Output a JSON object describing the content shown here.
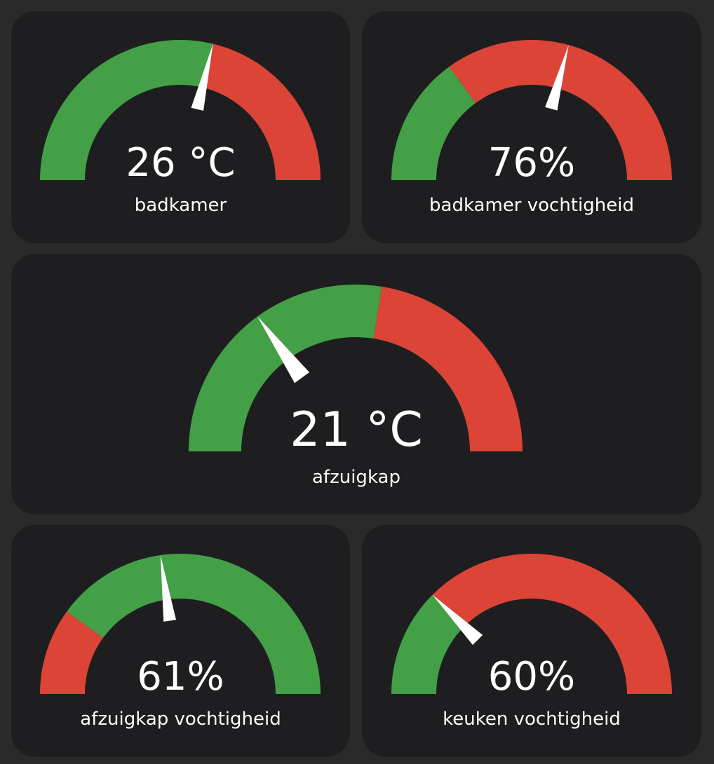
{
  "colors": {
    "background": "#2a2a2b",
    "card": "#1e1e20",
    "green": "#43a047",
    "red": "#db4437",
    "needle": "#ffffff"
  },
  "gauges": [
    {
      "id": "badkamer",
      "value_text": "26 °C",
      "label": "badkamer",
      "needle_fraction": 0.575,
      "segments": [
        {
          "color": "green",
          "from": 0.0,
          "to": 0.575
        },
        {
          "color": "red",
          "from": 0.575,
          "to": 1.0
        }
      ]
    },
    {
      "id": "badkamer-vochtigheid",
      "value_text": "76%",
      "label": "badkamer vochtigheid",
      "needle_fraction": 0.585,
      "segments": [
        {
          "color": "green",
          "from": 0.0,
          "to": 0.3
        },
        {
          "color": "red",
          "from": 0.3,
          "to": 1.0
        }
      ]
    },
    {
      "id": "afzuigkap",
      "value_text": "21 °C",
      "label": "afzuigkap",
      "needle_fraction": 0.3,
      "segments": [
        {
          "color": "green",
          "from": 0.0,
          "to": 0.55
        },
        {
          "color": "red",
          "from": 0.55,
          "to": 1.0
        }
      ]
    },
    {
      "id": "afzuigkap-vochtigheid",
      "value_text": "61%",
      "label": "afzuigkap vochtigheid",
      "needle_fraction": 0.455,
      "segments": [
        {
          "color": "red",
          "from": 0.0,
          "to": 0.2
        },
        {
          "color": "green",
          "from": 0.2,
          "to": 1.0
        }
      ]
    },
    {
      "id": "keuken-vochtigheid",
      "value_text": "60%",
      "label": "keuken vochtigheid",
      "needle_fraction": 0.25,
      "segments": [
        {
          "color": "green",
          "from": 0.0,
          "to": 0.25
        },
        {
          "color": "red",
          "from": 0.25,
          "to": 1.0
        }
      ]
    }
  ]
}
